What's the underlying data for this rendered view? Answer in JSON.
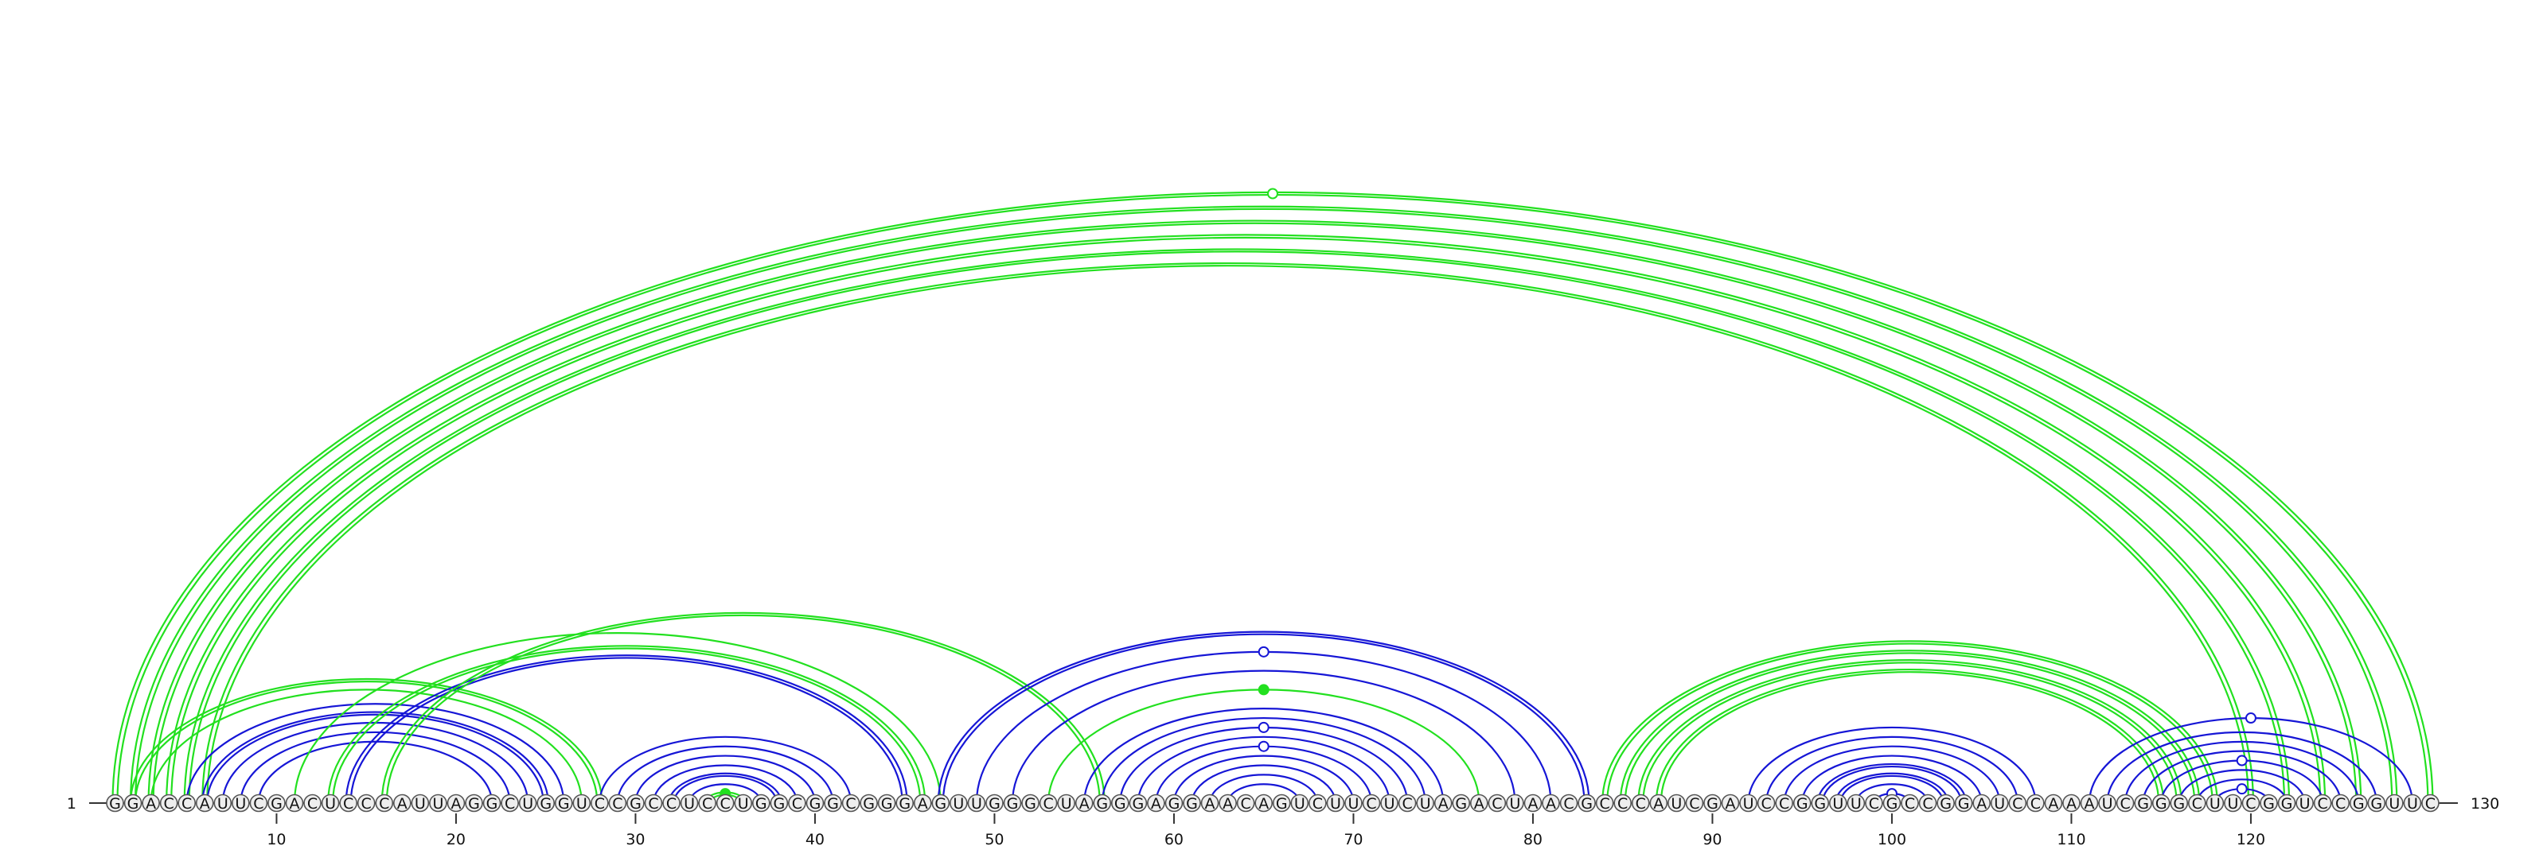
{
  "diagram": {
    "sequence": "GGACCAUUCGACUCCCAUUAGGCUGGUCCGCCUCCUGGCGGCGGGAGUUGGGCUAGGGAGGAACAGUCUUCUCUAGACUAACGCCCAUCGAUCCGGUUCGCCGGAUCCAAAUCGGGCUUCGGUCCGGUUC",
    "length": 130,
    "start_label": "1",
    "end_label": "130",
    "ticks": [
      "10",
      "20",
      "30",
      "40",
      "50",
      "60",
      "70",
      "80",
      "90",
      "100",
      "110",
      "120"
    ],
    "colors": {
      "green": "#22e01f",
      "blue": "#1616d6",
      "circle_stroke": "#555555",
      "circle_fill": "#eeeeee"
    },
    "arcs": [
      {
        "i": 1,
        "j": 130,
        "color": "green",
        "style": "double",
        "marker": "open"
      },
      {
        "i": 2,
        "j": 128,
        "color": "green",
        "style": "double"
      },
      {
        "i": 3,
        "j": 126,
        "color": "green",
        "style": "double"
      },
      {
        "i": 4,
        "j": 124,
        "color": "green",
        "style": "double"
      },
      {
        "i": 5,
        "j": 122,
        "color": "green",
        "style": "double"
      },
      {
        "i": 6,
        "j": 120,
        "color": "green",
        "style": "double"
      },
      {
        "i": 2,
        "j": 28,
        "color": "green",
        "style": "double"
      },
      {
        "i": 3,
        "j": 27,
        "color": "green",
        "style": "single"
      },
      {
        "i": 5,
        "j": 26,
        "color": "blue",
        "style": "single"
      },
      {
        "i": 6,
        "j": 25,
        "color": "blue",
        "style": "double"
      },
      {
        "i": 7,
        "j": 24,
        "color": "blue",
        "style": "single"
      },
      {
        "i": 8,
        "j": 23,
        "color": "blue",
        "style": "single"
      },
      {
        "i": 9,
        "j": 22,
        "color": "blue",
        "style": "single"
      },
      {
        "i": 11,
        "j": 47,
        "color": "green",
        "style": "single"
      },
      {
        "i": 13,
        "j": 46,
        "color": "green",
        "style": "double"
      },
      {
        "i": 14,
        "j": 45,
        "color": "blue",
        "style": "double"
      },
      {
        "i": 16,
        "j": 56,
        "color": "green",
        "style": "double"
      },
      {
        "i": 28,
        "j": 42,
        "color": "blue",
        "style": "single"
      },
      {
        "i": 29,
        "j": 41,
        "color": "blue",
        "style": "single"
      },
      {
        "i": 30,
        "j": 40,
        "color": "blue",
        "style": "single"
      },
      {
        "i": 31,
        "j": 39,
        "color": "blue",
        "style": "single"
      },
      {
        "i": 32,
        "j": 38,
        "color": "blue",
        "style": "double"
      },
      {
        "i": 33,
        "j": 37,
        "color": "blue",
        "style": "single"
      },
      {
        "i": 34,
        "j": 36,
        "color": "green",
        "style": "double",
        "marker": "filled"
      },
      {
        "i": 47,
        "j": 83,
        "color": "blue",
        "style": "double"
      },
      {
        "i": 49,
        "j": 81,
        "color": "blue",
        "style": "single",
        "marker": "open"
      },
      {
        "i": 51,
        "j": 79,
        "color": "blue",
        "style": "single"
      },
      {
        "i": 53,
        "j": 77,
        "color": "green",
        "style": "single",
        "marker": "filled"
      },
      {
        "i": 55,
        "j": 75,
        "color": "blue",
        "style": "single"
      },
      {
        "i": 56,
        "j": 74,
        "color": "blue",
        "style": "single"
      },
      {
        "i": 57,
        "j": 73,
        "color": "blue",
        "style": "single",
        "marker": "open"
      },
      {
        "i": 58,
        "j": 72,
        "color": "blue",
        "style": "single"
      },
      {
        "i": 59,
        "j": 71,
        "color": "blue",
        "style": "single",
        "marker": "open"
      },
      {
        "i": 60,
        "j": 70,
        "color": "blue",
        "style": "single"
      },
      {
        "i": 61,
        "j": 69,
        "color": "blue",
        "style": "single"
      },
      {
        "i": 62,
        "j": 68,
        "color": "blue",
        "style": "single"
      },
      {
        "i": 63,
        "j": 67,
        "color": "blue",
        "style": "single"
      },
      {
        "i": 84,
        "j": 118,
        "color": "green",
        "style": "double"
      },
      {
        "i": 85,
        "j": 117,
        "color": "green",
        "style": "double"
      },
      {
        "i": 86,
        "j": 116,
        "color": "green",
        "style": "double"
      },
      {
        "i": 87,
        "j": 115,
        "color": "green",
        "style": "double"
      },
      {
        "i": 92,
        "j": 108,
        "color": "blue",
        "style": "single"
      },
      {
        "i": 93,
        "j": 107,
        "color": "blue",
        "style": "single"
      },
      {
        "i": 94,
        "j": 106,
        "color": "blue",
        "style": "single"
      },
      {
        "i": 95,
        "j": 105,
        "color": "blue",
        "style": "single"
      },
      {
        "i": 96,
        "j": 104,
        "color": "blue",
        "style": "double"
      },
      {
        "i": 97,
        "j": 103,
        "color": "blue",
        "style": "double"
      },
      {
        "i": 98,
        "j": 102,
        "color": "blue",
        "style": "single"
      },
      {
        "i": 99,
        "j": 101,
        "color": "blue",
        "style": "single",
        "marker": "open"
      },
      {
        "i": 111,
        "j": 129,
        "color": "blue",
        "style": "single",
        "marker": "open"
      },
      {
        "i": 112,
        "j": 127,
        "color": "blue",
        "style": "single"
      },
      {
        "i": 113,
        "j": 126,
        "color": "blue",
        "style": "single"
      },
      {
        "i": 114,
        "j": 125,
        "color": "blue",
        "style": "single"
      },
      {
        "i": 115,
        "j": 124,
        "color": "blue",
        "style": "single",
        "marker": "open"
      },
      {
        "i": 116,
        "j": 123,
        "color": "blue",
        "style": "single"
      },
      {
        "i": 117,
        "j": 122,
        "color": "blue",
        "style": "single"
      },
      {
        "i": 118,
        "j": 121,
        "color": "blue",
        "style": "single",
        "marker": "open"
      }
    ]
  }
}
